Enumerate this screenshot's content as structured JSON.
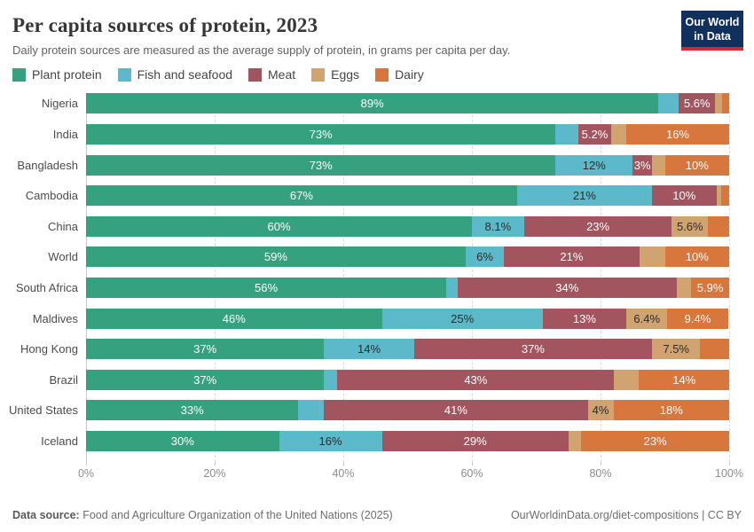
{
  "header": {
    "title": "Per capita sources of protein, 2023",
    "subtitle": "Daily protein sources are measured as the average supply of protein, in grams per capita per day."
  },
  "logo": {
    "line1": "Our World",
    "line2": "in Data",
    "bg_color": "#12305e",
    "accent_color": "#e0262d"
  },
  "legend": [
    {
      "name": "Plant protein",
      "color": "#36a17e"
    },
    {
      "name": "Fish and seafood",
      "color": "#5cb9c9"
    },
    {
      "name": "Meat",
      "color": "#a2555f"
    },
    {
      "name": "Eggs",
      "color": "#d0a370"
    },
    {
      "name": "Dairy",
      "color": "#d7763d"
    }
  ],
  "chart_data": {
    "type": "bar",
    "stacked": true,
    "orientation": "horizontal",
    "unit": "%",
    "xlim": [
      0,
      100
    ],
    "grid": "dashed-vertical",
    "x_ticks": [
      {
        "label": "0%",
        "value": 0
      },
      {
        "label": "20%",
        "value": 20
      },
      {
        "label": "40%",
        "value": 40
      },
      {
        "label": "60%",
        "value": 60
      },
      {
        "label": "80%",
        "value": 80
      },
      {
        "label": "100%",
        "value": 100
      }
    ],
    "series_names": [
      "Plant protein",
      "Fish and seafood",
      "Meat",
      "Eggs",
      "Dairy"
    ],
    "palette": {
      "Plant protein": {
        "color": "#36a17e",
        "label_color": "#ffffff"
      },
      "Fish and seafood": {
        "color": "#5cb9c9",
        "label_color": "#2b2b2b"
      },
      "Meat": {
        "color": "#a2555f",
        "label_color": "#ffffff"
      },
      "Eggs": {
        "color": "#d0a370",
        "label_color": "#2b2b2b"
      },
      "Dairy": {
        "color": "#d7763d",
        "label_color": "#ffffff"
      }
    },
    "rows": [
      {
        "country": "Nigeria",
        "segments": [
          {
            "name": "Plant protein",
            "value": 89,
            "label": "89%"
          },
          {
            "name": "Fish and seafood",
            "value": 3.2,
            "label": ""
          },
          {
            "name": "Meat",
            "value": 5.6,
            "label": "5.6%"
          },
          {
            "name": "Eggs",
            "value": 1.1,
            "label": ""
          },
          {
            "name": "Dairy",
            "value": 1.1,
            "label": ""
          }
        ]
      },
      {
        "country": "India",
        "segments": [
          {
            "name": "Plant protein",
            "value": 73,
            "label": "73%"
          },
          {
            "name": "Fish and seafood",
            "value": 3.5,
            "label": ""
          },
          {
            "name": "Meat",
            "value": 5.2,
            "label": "5.2%"
          },
          {
            "name": "Eggs",
            "value": 2.3,
            "label": ""
          },
          {
            "name": "Dairy",
            "value": 16,
            "label": "16%"
          }
        ]
      },
      {
        "country": "Bangladesh",
        "segments": [
          {
            "name": "Plant protein",
            "value": 73,
            "label": "73%"
          },
          {
            "name": "Fish and seafood",
            "value": 12,
            "label": "12%"
          },
          {
            "name": "Meat",
            "value": 3,
            "label": "3%"
          },
          {
            "name": "Eggs",
            "value": 2,
            "label": ""
          },
          {
            "name": "Dairy",
            "value": 10,
            "label": "10%"
          }
        ]
      },
      {
        "country": "Cambodia",
        "segments": [
          {
            "name": "Plant protein",
            "value": 67,
            "label": "67%"
          },
          {
            "name": "Fish and seafood",
            "value": 21,
            "label": "21%"
          },
          {
            "name": "Meat",
            "value": 10,
            "label": "10%"
          },
          {
            "name": "Eggs",
            "value": 0.7,
            "label": ""
          },
          {
            "name": "Dairy",
            "value": 1.3,
            "label": ""
          }
        ]
      },
      {
        "country": "China",
        "segments": [
          {
            "name": "Plant protein",
            "value": 60,
            "label": "60%"
          },
          {
            "name": "Fish and seafood",
            "value": 8.1,
            "label": "8.1%"
          },
          {
            "name": "Meat",
            "value": 23,
            "label": "23%"
          },
          {
            "name": "Eggs",
            "value": 5.6,
            "label": "5.6%"
          },
          {
            "name": "Dairy",
            "value": 3.3,
            "label": ""
          }
        ]
      },
      {
        "country": "World",
        "segments": [
          {
            "name": "Plant protein",
            "value": 59,
            "label": "59%"
          },
          {
            "name": "Fish and seafood",
            "value": 6,
            "label": "6%"
          },
          {
            "name": "Meat",
            "value": 21,
            "label": "21%"
          },
          {
            "name": "Eggs",
            "value": 4,
            "label": ""
          },
          {
            "name": "Dairy",
            "value": 10,
            "label": "10%"
          }
        ]
      },
      {
        "country": "South Africa",
        "segments": [
          {
            "name": "Plant protein",
            "value": 56,
            "label": "56%"
          },
          {
            "name": "Fish and seafood",
            "value": 1.8,
            "label": ""
          },
          {
            "name": "Meat",
            "value": 34,
            "label": "34%"
          },
          {
            "name": "Eggs",
            "value": 2.3,
            "label": ""
          },
          {
            "name": "Dairy",
            "value": 5.9,
            "label": "5.9%"
          }
        ]
      },
      {
        "country": "Maldives",
        "segments": [
          {
            "name": "Plant protein",
            "value": 46,
            "label": "46%"
          },
          {
            "name": "Fish and seafood",
            "value": 25,
            "label": "25%"
          },
          {
            "name": "Meat",
            "value": 13,
            "label": "13%"
          },
          {
            "name": "Eggs",
            "value": 6.4,
            "label": "6.4%"
          },
          {
            "name": "Dairy",
            "value": 9.4,
            "label": "9.4%"
          }
        ]
      },
      {
        "country": "Hong Kong",
        "segments": [
          {
            "name": "Plant protein",
            "value": 37,
            "label": "37%"
          },
          {
            "name": "Fish and seafood",
            "value": 14,
            "label": "14%"
          },
          {
            "name": "Meat",
            "value": 37,
            "label": "37%"
          },
          {
            "name": "Eggs",
            "value": 7.5,
            "label": "7.5%"
          },
          {
            "name": "Dairy",
            "value": 4.5,
            "label": ""
          }
        ]
      },
      {
        "country": "Brazil",
        "segments": [
          {
            "name": "Plant protein",
            "value": 37,
            "label": "37%"
          },
          {
            "name": "Fish and seafood",
            "value": 2.1,
            "label": ""
          },
          {
            "name": "Meat",
            "value": 43,
            "label": "43%"
          },
          {
            "name": "Eggs",
            "value": 3.9,
            "label": ""
          },
          {
            "name": "Dairy",
            "value": 14,
            "label": "14%"
          }
        ]
      },
      {
        "country": "United States",
        "segments": [
          {
            "name": "Plant protein",
            "value": 33,
            "label": "33%"
          },
          {
            "name": "Fish and seafood",
            "value": 4,
            "label": ""
          },
          {
            "name": "Meat",
            "value": 41,
            "label": "41%"
          },
          {
            "name": "Eggs",
            "value": 4,
            "label": "4%"
          },
          {
            "name": "Dairy",
            "value": 18,
            "label": "18%"
          }
        ]
      },
      {
        "country": "Iceland",
        "segments": [
          {
            "name": "Plant protein",
            "value": 30,
            "label": "30%"
          },
          {
            "name": "Fish and seafood",
            "value": 16,
            "label": "16%"
          },
          {
            "name": "Meat",
            "value": 29,
            "label": "29%"
          },
          {
            "name": "Eggs",
            "value": 2,
            "label": ""
          },
          {
            "name": "Dairy",
            "value": 23,
            "label": "23%"
          }
        ]
      }
    ]
  },
  "footer": {
    "datasource_label": "Data source:",
    "datasource_text": " Food and Agriculture Organization of the United Nations (2025)",
    "right_text": "OurWorldinData.org/diet-compositions | CC BY"
  }
}
